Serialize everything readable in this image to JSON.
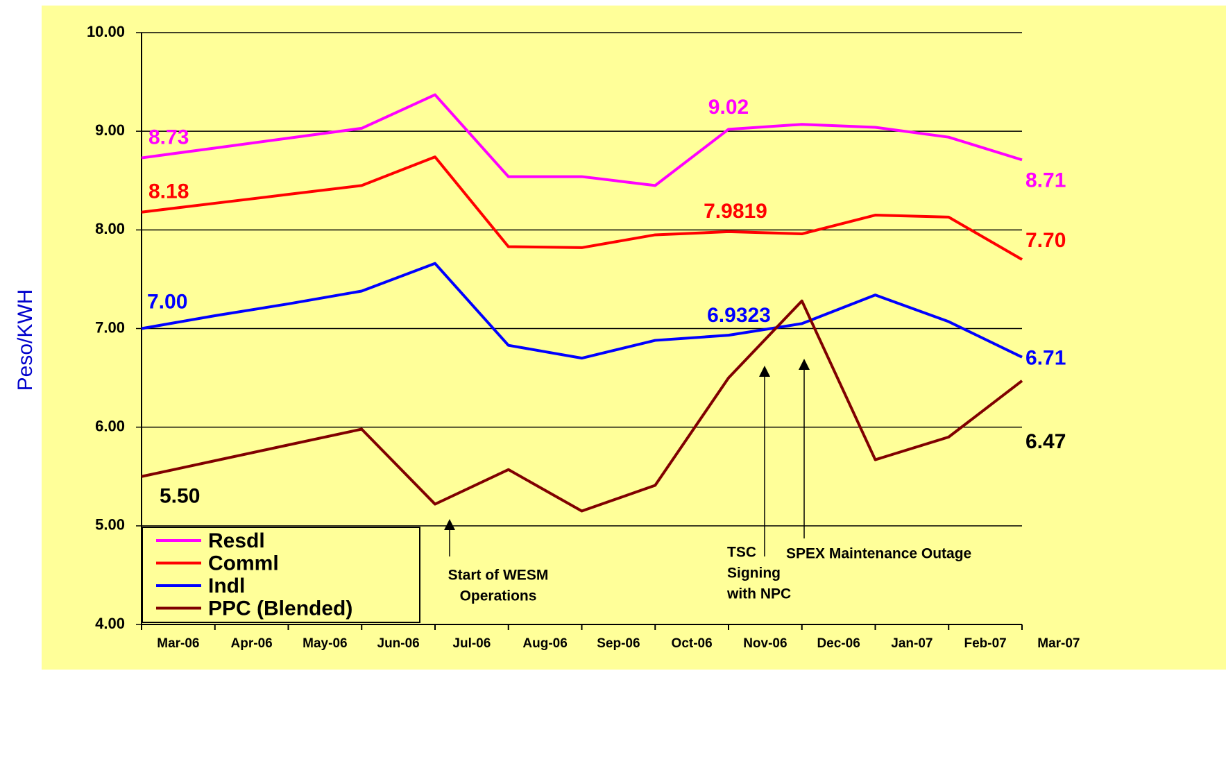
{
  "chart_data": {
    "type": "line",
    "y_label": "Peso/KWH",
    "categories": [
      "Mar-06",
      "Apr-06",
      "May-06",
      "Jun-06",
      "Jul-06",
      "Aug-06",
      "Sep-06",
      "Oct-06",
      "Nov-06",
      "Dec-06",
      "Jan-07",
      "Feb-07",
      "Mar-07"
    ],
    "series": [
      {
        "name": "Resdl",
        "color": "#ff00ff",
        "values": [
          8.73,
          8.83,
          8.93,
          9.03,
          9.37,
          8.54,
          8.54,
          8.45,
          9.02,
          9.07,
          9.04,
          8.94,
          8.71
        ],
        "value_labels": [
          null,
          null,
          null,
          null,
          null,
          null,
          null,
          null,
          null,
          null,
          null,
          null,
          null
        ]
      },
      {
        "name": "Comml",
        "color": "#ff0000",
        "values": [
          8.18,
          8.27,
          8.36,
          8.45,
          8.74,
          7.83,
          7.82,
          7.95,
          7.9819,
          7.96,
          8.15,
          8.13,
          7.7
        ],
        "value_labels": [
          null,
          null,
          null,
          null,
          null,
          null,
          null,
          null,
          null,
          null,
          null,
          null,
          "7.70"
        ]
      },
      {
        "name": "Indl",
        "color": "#0000ff",
        "values": [
          7,
          7.13,
          7.25,
          7.38,
          7.66,
          6.83,
          6.7,
          6.88,
          6.9323,
          7.05,
          7.34,
          7.07,
          6.71
        ],
        "value_labels": [
          "7.00",
          null,
          null,
          null,
          null,
          null,
          null,
          null,
          null,
          null,
          null,
          null,
          null
        ]
      },
      {
        "name": "PPC (Blended)",
        "color": "#800000",
        "values": [
          5.5,
          5.66,
          5.82,
          5.98,
          5.22,
          5.57,
          5.15,
          5.41,
          6.5,
          7.28,
          5.67,
          5.9,
          6.47
        ],
        "value_labels": [
          "5.50",
          null,
          null,
          null,
          null,
          null,
          null,
          null,
          null,
          null,
          null,
          null,
          null
        ]
      }
    ],
    "ylim": [
      4,
      10
    ],
    "yticks": [
      {
        "value": 4,
        "label": "4.00"
      },
      {
        "value": 5,
        "label": "5.00"
      },
      {
        "value": 6,
        "label": "6.00"
      },
      {
        "value": 7,
        "label": "7.00"
      },
      {
        "value": 8,
        "label": "8.00"
      },
      {
        "value": 9,
        "label": "9.00"
      },
      {
        "value": 10,
        "label": "10.00"
      }
    ],
    "grid": true,
    "legend": "lower left",
    "annotations": [
      {
        "lines": [
          "Start of WESM",
          "Operations"
        ]
      },
      {
        "lines": [
          "TSC",
          "Signing",
          "with NPC"
        ]
      },
      {
        "lines": [
          "SPEX Maintenance Outage"
        ]
      }
    ]
  }
}
